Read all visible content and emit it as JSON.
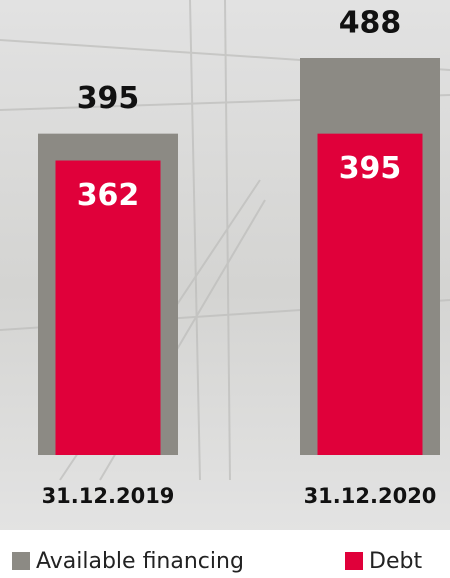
{
  "chart_data": {
    "type": "bar",
    "categories": [
      "31.12.2019",
      "31.12.2020"
    ],
    "series": [
      {
        "name": "Available financing",
        "color": "#8c8a84",
        "values": [
          395,
          488
        ]
      },
      {
        "name": "Debt",
        "color": "#e0003a",
        "values": [
          362,
          395
        ]
      }
    ]
  }
}
